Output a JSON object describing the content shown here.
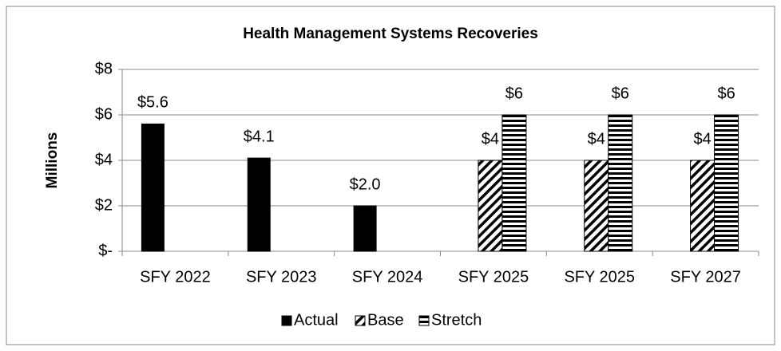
{
  "chart_data": {
    "type": "bar",
    "title": "Health Management Systems Recoveries",
    "y_label": "Millions",
    "categories": [
      "SFY 2022",
      "SFY 2023",
      "SFY 2024",
      "SFY 2025",
      "SFY 2025",
      "SFY 2027"
    ],
    "series": [
      {
        "name": "Actual",
        "color": "#000000",
        "pattern": "solid",
        "values": [
          5.6,
          4.1,
          2.0,
          null,
          null,
          null
        ],
        "value_labels": [
          "$5.6",
          "$4.1",
          "$2.0",
          null,
          null,
          null
        ]
      },
      {
        "name": "Base",
        "color": "#000000",
        "pattern": "diagonal",
        "values": [
          null,
          null,
          null,
          4,
          4,
          4
        ],
        "value_labels": [
          null,
          null,
          null,
          "$4",
          "$4",
          "$4"
        ]
      },
      {
        "name": "Stretch",
        "color": "#000000",
        "pattern": "horizontal",
        "values": [
          null,
          null,
          null,
          6,
          6,
          6
        ],
        "value_labels": [
          null,
          null,
          null,
          "$6",
          "$6",
          "$6"
        ]
      }
    ],
    "ylim": [
      0,
      8
    ],
    "yticks": [
      {
        "value": 0,
        "label": "$-"
      },
      {
        "value": 2,
        "label": "$2"
      },
      {
        "value": 4,
        "label": "$4"
      },
      {
        "value": 6,
        "label": "$6"
      },
      {
        "value": 8,
        "label": "$8"
      }
    ],
    "grid": true,
    "legend": "bottom"
  }
}
